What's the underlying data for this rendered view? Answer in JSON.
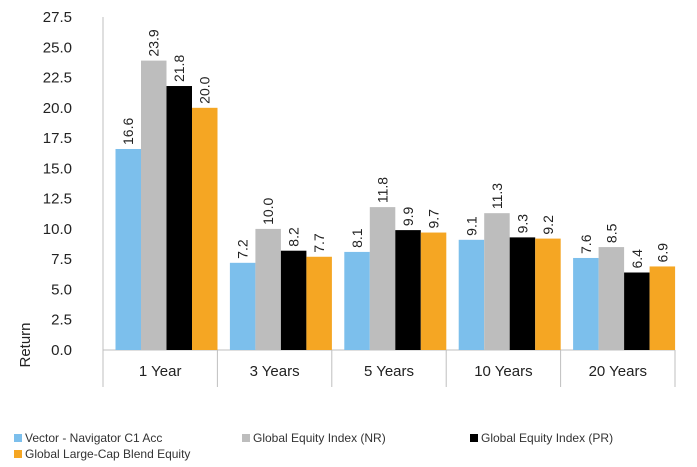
{
  "chart_data": {
    "type": "bar",
    "title": "",
    "xlabel": "",
    "ylabel": "Return",
    "ylim": [
      0,
      27.5
    ],
    "yticks": [
      "0.0",
      "2.5",
      "5.0",
      "7.5",
      "10.0",
      "12.5",
      "15.0",
      "17.5",
      "20.0",
      "22.5",
      "25.0",
      "27.5"
    ],
    "categories": [
      "1 Year",
      "3 Years",
      "5 Years",
      "10 Years",
      "20 Years"
    ],
    "series": [
      {
        "name": "Vector - Navigator C1 Acc",
        "color": "#7cbfec",
        "values": [
          16.6,
          7.2,
          8.1,
          9.1,
          7.6
        ],
        "labels": [
          "16.6",
          "7.2",
          "8.1",
          "9.1",
          "7.6"
        ]
      },
      {
        "name": "Global Equity Index (NR)",
        "color": "#bdbdbd",
        "values": [
          23.9,
          10.0,
          11.8,
          11.3,
          8.5
        ],
        "labels": [
          "23.9",
          "10.0",
          "11.8",
          "11.3",
          "8.5"
        ]
      },
      {
        "name": "Global Equity Index (PR)",
        "color": "#000000",
        "values": [
          21.8,
          8.2,
          9.9,
          9.3,
          6.4
        ],
        "labels": [
          "21.8",
          "8.2",
          "9.9",
          "9.3",
          "6.4"
        ]
      },
      {
        "name": "Global Large-Cap Blend Equity",
        "color": "#f5a623",
        "values": [
          20.0,
          7.7,
          9.7,
          9.2,
          6.9
        ],
        "labels": [
          "20.0",
          "7.7",
          "9.7",
          "9.2",
          "6.9"
        ]
      }
    ],
    "grid": false,
    "legend_position": "bottom"
  }
}
